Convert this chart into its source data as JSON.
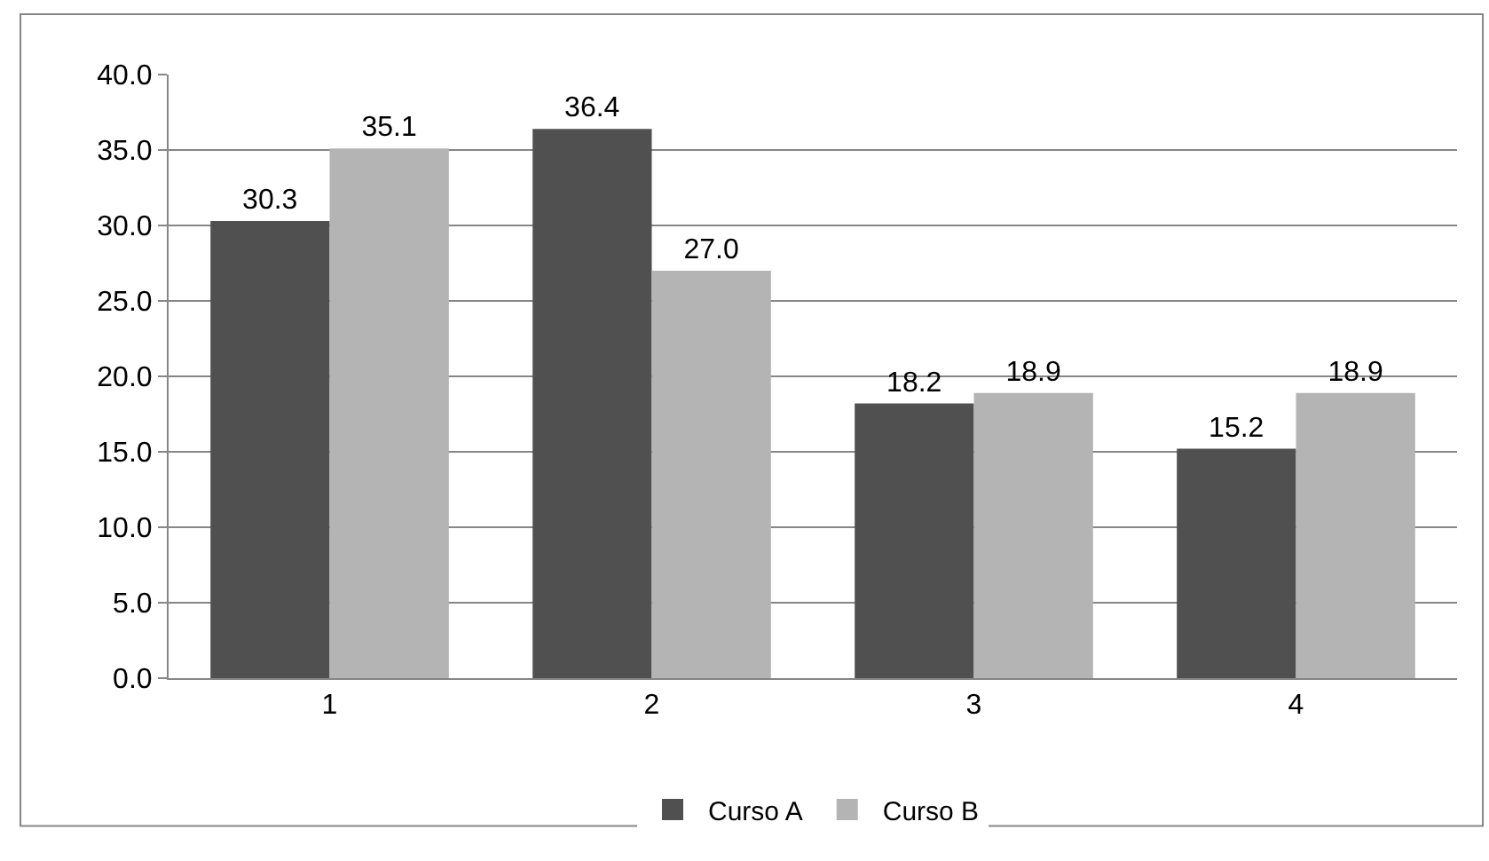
{
  "chart_data": {
    "type": "bar",
    "categories": [
      "1",
      "2",
      "3",
      "4"
    ],
    "series": [
      {
        "name": "Curso A",
        "color": "#505050",
        "values": [
          30.3,
          36.4,
          18.2,
          15.2
        ],
        "value_labels": [
          "30.3",
          "36.4",
          "18.2",
          "15.2"
        ]
      },
      {
        "name": "Curso B",
        "color": "#b4b4b4",
        "values": [
          35.1,
          27.0,
          18.9,
          18.9
        ],
        "value_labels": [
          "35.1",
          "27.0",
          "18.9",
          "18.9"
        ]
      }
    ],
    "ylim": [
      0,
      40
    ],
    "yticks": [
      {
        "value": 0,
        "label": "0.0"
      },
      {
        "value": 5,
        "label": "5.0"
      },
      {
        "value": 10,
        "label": "10.0"
      },
      {
        "value": 15,
        "label": "15.0"
      },
      {
        "value": 20,
        "label": "20.0"
      },
      {
        "value": 25,
        "label": "25.0"
      },
      {
        "value": 30,
        "label": "30.0"
      },
      {
        "value": 35,
        "label": "35.0"
      },
      {
        "value": 40,
        "label": "40.0"
      }
    ],
    "grid": "y",
    "legend": "bottom"
  }
}
